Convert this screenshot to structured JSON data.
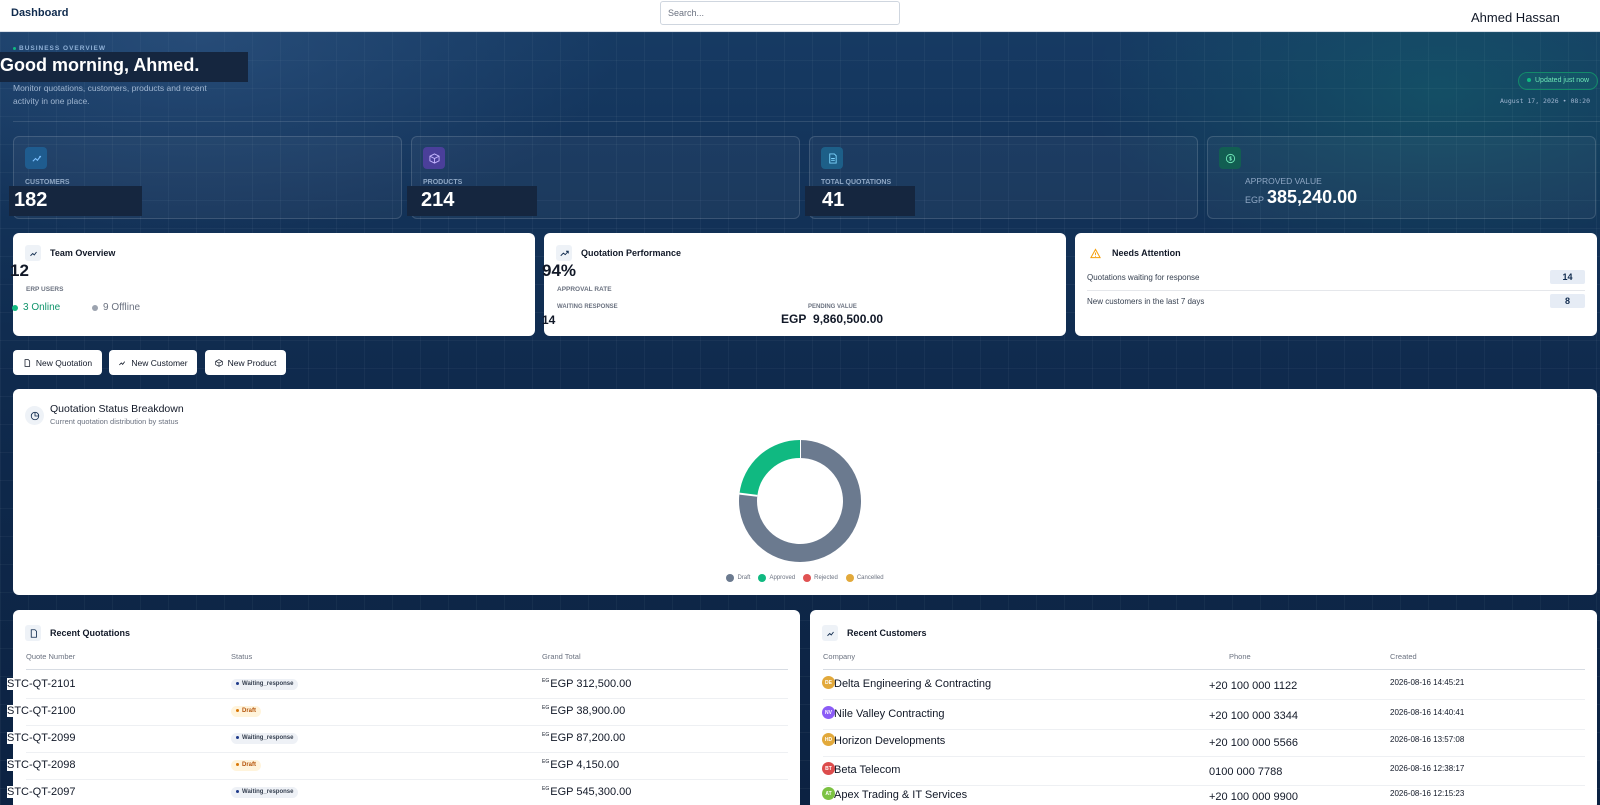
{
  "topbar": {
    "title": "Dashboard",
    "search_placeholder": "Search...",
    "user_name": "Ahmed Hassan"
  },
  "hero": {
    "eyebrow": "Business Overview",
    "greeting": "Good morning, Ahmed.",
    "subtitle": "Monitor quotations, customers, products and recent activity in one place.",
    "updated_badge": "Updated just now",
    "datetime": "August 17, 2026 • 08:20"
  },
  "stats": {
    "customers": {
      "label": "Customers",
      "value": "182",
      "icon": "users-icon"
    },
    "products": {
      "label": "Products",
      "value": "214",
      "icon": "box-icon"
    },
    "quotations": {
      "label": "Total Quotations",
      "value": "41",
      "icon": "file-icon"
    },
    "approved": {
      "label": "Approved Value",
      "currency": "EGP",
      "value": "385,240.00",
      "icon": "dollar-icon"
    }
  },
  "team": {
    "title": "Team Overview",
    "count": "12",
    "count_label": "ERP Users",
    "online": "3 Online",
    "offline": "9 Offline"
  },
  "performance": {
    "title": "Quotation Performance",
    "rate": "94%",
    "rate_label": "Approval Rate",
    "waiting_label": "Waiting Response",
    "waiting_value": "14",
    "pending_label": "Pending Value",
    "pending_currency": "EGP",
    "pending_value": "9,860,500.00"
  },
  "attention": {
    "title": "Needs Attention",
    "rows": [
      {
        "label": "Quotations waiting for response",
        "count": "14"
      },
      {
        "label": "New customers in the last 7 days",
        "count": "8"
      }
    ]
  },
  "actions": {
    "new_quotation": "New Quotation",
    "new_customer": "New Customer",
    "new_product": "New Product"
  },
  "status_chart": {
    "title": "Quotation Status Breakdown",
    "subtitle": "Current quotation distribution by status"
  },
  "chart_data": {
    "type": "pie",
    "donut": true,
    "categories": [
      "Draft",
      "Approved",
      "Rejected",
      "Cancelled"
    ],
    "values": [
      30,
      9,
      0,
      0
    ],
    "colors": [
      "#6b7a8f",
      "#10b981",
      "#e05252",
      "#e2a93b"
    ],
    "legend_position": "bottom"
  },
  "recent_quotations": {
    "title": "Recent Quotations",
    "columns": [
      "Quote Number",
      "Status",
      "Grand Total"
    ],
    "rows": [
      {
        "number": "STC-QT-2101",
        "status": "Waiting_response",
        "status_type": "waiting",
        "eg": "EG",
        "total": "EGP  312,500.00"
      },
      {
        "number": "STC-QT-2100",
        "status": "Draft",
        "status_type": "draft",
        "eg": "EG",
        "total": "EGP  38,900.00"
      },
      {
        "number": "STC-QT-2099",
        "status": "Waiting_response",
        "status_type": "waiting",
        "eg": "EG",
        "total": "EGP  87,200.00"
      },
      {
        "number": "STC-QT-2098",
        "status": "Draft",
        "status_type": "draft",
        "eg": "EG",
        "total": "EGP  4,150.00"
      },
      {
        "number": "STC-QT-2097",
        "status": "Waiting_response",
        "status_type": "waiting",
        "eg": "EG",
        "total": "EGP  545,300.00"
      }
    ]
  },
  "recent_customers": {
    "title": "Recent Customers",
    "columns": [
      "Company",
      "Phone",
      "Created"
    ],
    "rows": [
      {
        "initials": "DE",
        "color": "#e2a93b",
        "company": "Delta Engineering & Contracting",
        "phone": "+20 100 000 1122",
        "created": "2026-08-16 14:45:21"
      },
      {
        "initials": "NV",
        "color": "#8b5cf6",
        "company": "Nile Valley Contracting",
        "phone": "+20 100 000 3344",
        "created": "2026-08-16 14:40:41"
      },
      {
        "initials": "HD",
        "color": "#e2a93b",
        "company": "Horizon Developments",
        "phone": "+20 100 000 5566",
        "created": "2026-08-16 13:57:08"
      },
      {
        "initials": "BT",
        "color": "#dc4c4c",
        "company": "Beta Telecom",
        "phone": "0100 000 7788",
        "created": "2026-08-16 12:38:17"
      },
      {
        "initials": "AT",
        "color": "#7cc242",
        "company": "Apex Trading & IT Services",
        "phone": "+20 100 000 9900",
        "created": "2026-08-16 12:15:23"
      }
    ]
  }
}
